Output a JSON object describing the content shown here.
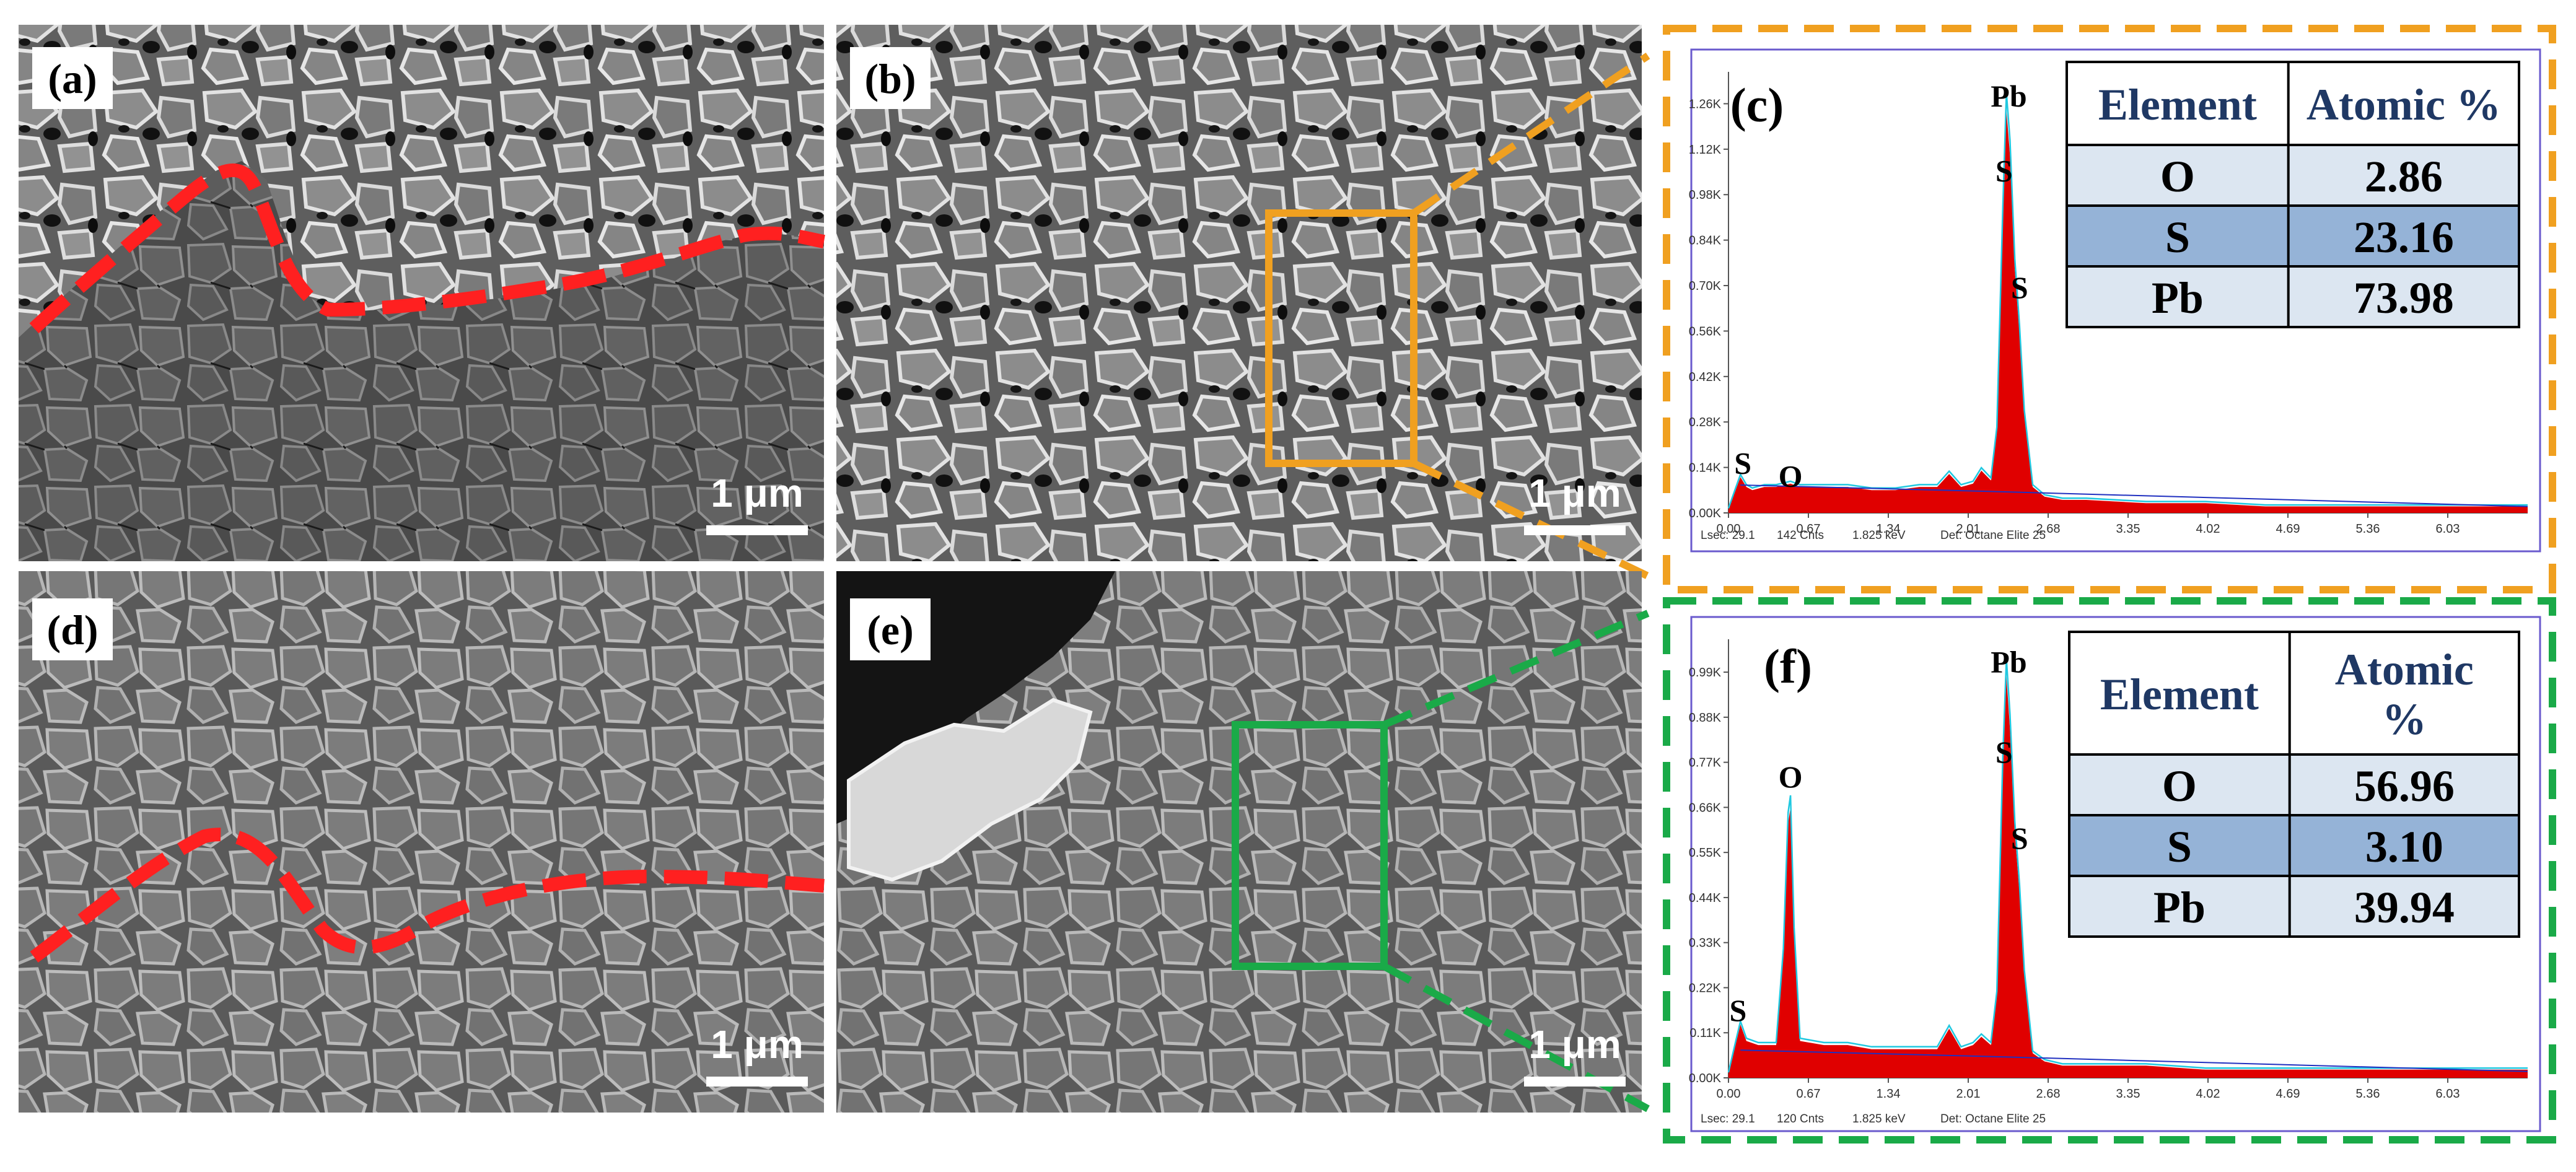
{
  "figure": {
    "panels": [
      {
        "label": "(a)",
        "scale_bar": "1 μm",
        "boundary": true,
        "texture": "porous-top"
      },
      {
        "label": "(b)",
        "scale_bar": "1 μm",
        "boundary": false,
        "texture": "porous"
      },
      {
        "label": "(d)",
        "scale_bar": "1 μm",
        "boundary": true,
        "texture": "dense"
      },
      {
        "label": "(e)",
        "scale_bar": "1 μm",
        "boundary": false,
        "texture": "dense-with-flakes"
      }
    ],
    "colors": {
      "boundary_dashed": "#ff2020",
      "box_c": "#f0a020",
      "box_f": "#1aaa48",
      "spectrum_fill": "#e00000",
      "spectrum_line": "#20c8e0",
      "background_line": "#2030c0",
      "table_header_text": "#1f3864",
      "table_row_light": "#dce6f1",
      "table_row_dark": "#95b3d7"
    }
  },
  "chart_data": [
    {
      "type": "area",
      "panel_label": "(c)",
      "ytick_labels": [
        "0.00K",
        "0.14K",
        "0.28K",
        "0.42K",
        "0.56K",
        "0.70K",
        "0.84K",
        "0.98K",
        "1.12K",
        "1.26K"
      ],
      "ylim": [
        0,
        1.32
      ],
      "xtick_labels": [
        "0.00",
        "0.67",
        "1.34",
        "2.01",
        "2.68",
        "3.35",
        "4.02",
        "4.69",
        "5.36",
        "6.03"
      ],
      "xlim": [
        0,
        6.7
      ],
      "peaks": [
        {
          "label": "S",
          "x": 0.12,
          "y": 0.11
        },
        {
          "label": "O",
          "x": 0.52,
          "y": 0.07
        },
        {
          "label": "S",
          "x": 2.31,
          "y": 1.01
        },
        {
          "label": "S",
          "x": 2.44,
          "y": 0.65
        },
        {
          "label": "Pb",
          "x": 2.35,
          "y": 1.24
        }
      ],
      "spectrum": {
        "x": [
          0.0,
          0.05,
          0.1,
          0.15,
          0.2,
          0.3,
          0.4,
          0.52,
          0.6,
          0.8,
          1.0,
          1.2,
          1.4,
          1.6,
          1.75,
          1.85,
          1.95,
          2.05,
          2.12,
          2.2,
          2.25,
          2.3,
          2.33,
          2.36,
          2.4,
          2.44,
          2.48,
          2.55,
          2.65,
          2.8,
          3.0,
          3.5,
          4.0,
          4.5,
          5.0,
          5.5,
          6.0,
          6.5,
          6.7
        ],
        "y": [
          0.01,
          0.06,
          0.11,
          0.08,
          0.07,
          0.08,
          0.08,
          0.09,
          0.08,
          0.08,
          0.08,
          0.07,
          0.07,
          0.08,
          0.08,
          0.12,
          0.08,
          0.09,
          0.13,
          0.1,
          0.25,
          0.9,
          1.24,
          1.1,
          0.75,
          0.55,
          0.3,
          0.08,
          0.05,
          0.04,
          0.04,
          0.03,
          0.03,
          0.02,
          0.02,
          0.02,
          0.02,
          0.02,
          0.02
        ]
      },
      "table": {
        "headers": [
          "Element",
          "Atomic %"
        ],
        "rows": [
          [
            "O",
            "2.86"
          ],
          [
            "S",
            "23.16"
          ],
          [
            "Pb",
            "73.98"
          ]
        ]
      },
      "footer": [
        "Lsec: 29.1",
        "142 Cnts",
        "1.825 keV",
        "Det: Octane Elite 25"
      ]
    },
    {
      "type": "area",
      "panel_label": "(f)",
      "ytick_labels": [
        "0.00K",
        "0.11K",
        "0.22K",
        "0.33K",
        "0.44K",
        "0.55K",
        "0.66K",
        "0.77K",
        "0.88K",
        "0.99K"
      ],
      "ylim": [
        0,
        1.04
      ],
      "xtick_labels": [
        "0.00",
        "0.67",
        "1.34",
        "2.01",
        "2.68",
        "3.35",
        "4.02",
        "4.69",
        "5.36",
        "6.03"
      ],
      "xlim": [
        0,
        6.7
      ],
      "peaks": [
        {
          "label": "S",
          "x": 0.08,
          "y": 0.13
        },
        {
          "label": "O",
          "x": 0.52,
          "y": 0.7
        },
        {
          "label": "S",
          "x": 2.31,
          "y": 0.76
        },
        {
          "label": "S",
          "x": 2.44,
          "y": 0.55
        },
        {
          "label": "Pb",
          "x": 2.35,
          "y": 0.98
        }
      ],
      "spectrum": {
        "x": [
          0.0,
          0.05,
          0.1,
          0.15,
          0.25,
          0.4,
          0.46,
          0.5,
          0.52,
          0.55,
          0.6,
          0.8,
          1.0,
          1.2,
          1.4,
          1.6,
          1.75,
          1.85,
          1.95,
          2.05,
          2.12,
          2.2,
          2.25,
          2.3,
          2.33,
          2.36,
          2.4,
          2.44,
          2.48,
          2.55,
          2.65,
          2.8,
          3.0,
          3.5,
          4.0,
          4.5,
          5.0,
          5.5,
          6.0,
          6.5,
          6.7
        ],
        "y": [
          0.01,
          0.07,
          0.13,
          0.09,
          0.08,
          0.08,
          0.3,
          0.62,
          0.66,
          0.35,
          0.09,
          0.08,
          0.08,
          0.07,
          0.07,
          0.07,
          0.07,
          0.12,
          0.07,
          0.08,
          0.1,
          0.08,
          0.2,
          0.75,
          0.98,
          0.85,
          0.6,
          0.45,
          0.25,
          0.06,
          0.04,
          0.03,
          0.03,
          0.03,
          0.02,
          0.02,
          0.02,
          0.02,
          0.02,
          0.02,
          0.02
        ]
      },
      "table": {
        "headers": [
          "Element",
          "Atomic %"
        ],
        "rows": [
          [
            "O",
            "56.96"
          ],
          [
            "S",
            "3.10"
          ],
          [
            "Pb",
            "39.94"
          ]
        ]
      },
      "footer": [
        "Lsec: 29.1",
        "120 Cnts",
        "1.825 keV",
        "Det: Octane Elite 25"
      ]
    }
  ]
}
